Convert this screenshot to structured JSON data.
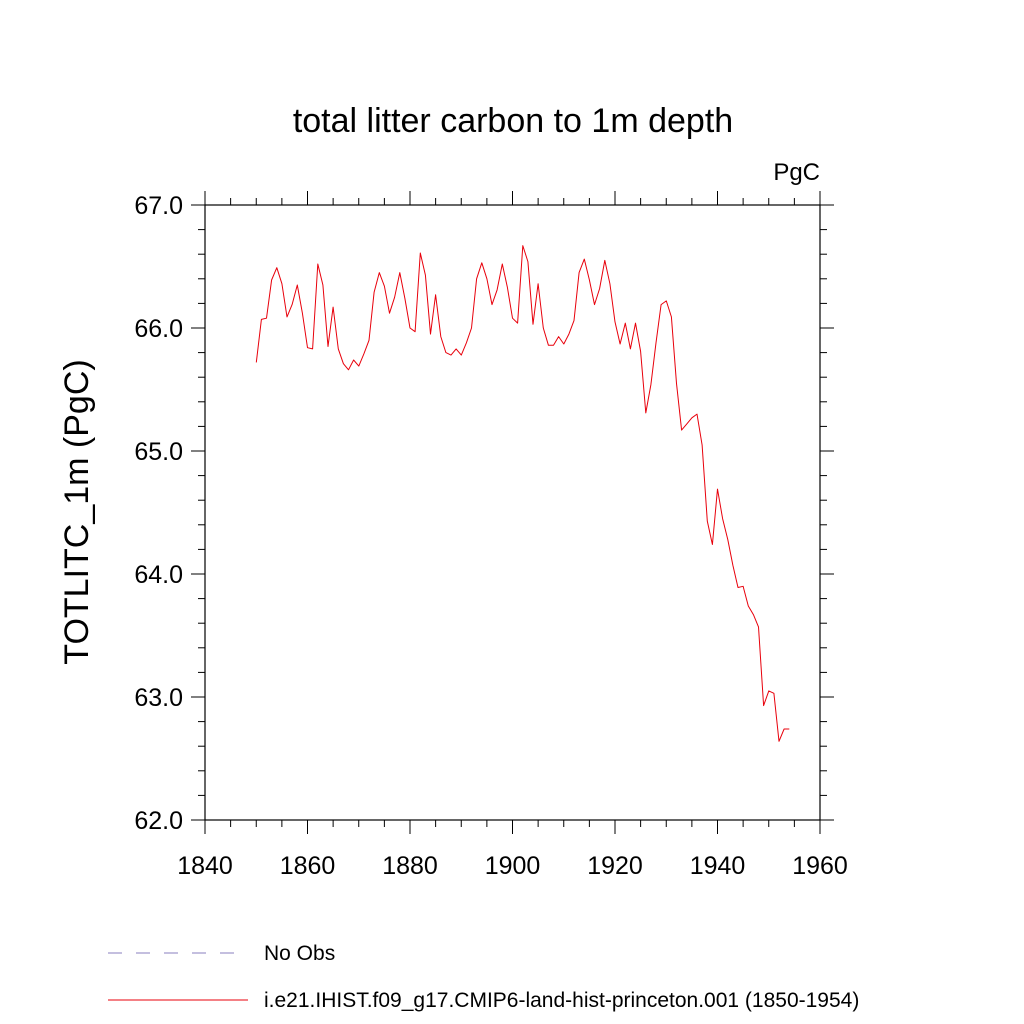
{
  "chart_data": {
    "type": "line",
    "title": "total litter carbon to 1m depth",
    "units": "PgC",
    "xlabel": "",
    "ylabel": "TOTLITC_1m  (PgC)",
    "xlim": [
      1840,
      1960
    ],
    "ylim": [
      62.0,
      67.0
    ],
    "x_ticks": [
      "1840",
      "1860",
      "1880",
      "1900",
      "1920",
      "1940",
      "1960"
    ],
    "y_ticks": [
      "62.0",
      "63.0",
      "64.0",
      "65.0",
      "66.0",
      "67.0"
    ],
    "grid": false,
    "legend_position": "bottom",
    "series": [
      {
        "name": "i.e21.IHIST.f09_g17.CMIP6-land-hist-princeton.001 (1850-1954)",
        "color": "#e8000b",
        "style": "solid",
        "x": [
          1850,
          1851,
          1852,
          1853,
          1854,
          1855,
          1856,
          1857,
          1858,
          1859,
          1860,
          1861,
          1862,
          1863,
          1864,
          1865,
          1866,
          1867,
          1868,
          1869,
          1870,
          1871,
          1872,
          1873,
          1874,
          1875,
          1876,
          1877,
          1878,
          1879,
          1880,
          1881,
          1882,
          1883,
          1884,
          1885,
          1886,
          1887,
          1888,
          1889,
          1890,
          1891,
          1892,
          1893,
          1894,
          1895,
          1896,
          1897,
          1898,
          1899,
          1900,
          1901,
          1902,
          1903,
          1904,
          1905,
          1906,
          1907,
          1908,
          1909,
          1910,
          1911,
          1912,
          1913,
          1914,
          1915,
          1916,
          1917,
          1918,
          1919,
          1920,
          1921,
          1922,
          1923,
          1924,
          1925,
          1926,
          1927,
          1928,
          1929,
          1930,
          1931,
          1932,
          1933,
          1934,
          1935,
          1936,
          1937,
          1938,
          1939,
          1940,
          1941,
          1942,
          1943,
          1944,
          1945,
          1946,
          1947,
          1948,
          1949,
          1950,
          1951,
          1952,
          1953,
          1954
        ],
        "y": [
          65.72,
          66.07,
          66.08,
          66.39,
          66.49,
          66.36,
          66.09,
          66.19,
          66.35,
          66.12,
          65.84,
          65.83,
          66.52,
          66.35,
          65.85,
          66.17,
          65.83,
          65.71,
          65.66,
          65.74,
          65.69,
          65.79,
          65.9,
          66.29,
          66.45,
          66.34,
          66.12,
          66.25,
          66.45,
          66.24,
          66.0,
          65.97,
          66.61,
          66.43,
          65.95,
          66.27,
          65.93,
          65.8,
          65.78,
          65.83,
          65.78,
          65.88,
          66.0,
          66.4,
          66.53,
          66.4,
          66.19,
          66.31,
          66.52,
          66.33,
          66.08,
          66.04,
          66.67,
          66.54,
          66.03,
          66.36,
          66.0,
          65.86,
          65.86,
          65.93,
          65.87,
          65.95,
          66.06,
          66.45,
          66.56,
          66.39,
          66.19,
          66.32,
          66.55,
          66.36,
          66.05,
          65.87,
          66.04,
          65.83,
          66.04,
          65.81,
          65.31,
          65.54,
          65.88,
          66.19,
          66.22,
          66.09,
          65.55,
          65.17,
          65.22,
          65.27,
          65.3,
          65.05,
          64.43,
          64.24,
          64.69,
          64.45,
          64.28,
          64.07,
          63.89,
          63.9,
          63.74,
          63.67,
          63.57,
          62.93,
          63.05,
          63.03,
          62.64,
          62.74,
          62.74
        ]
      }
    ],
    "legend": [
      {
        "label": "No Obs",
        "color": "#8a7fbf",
        "style": "dashed"
      },
      {
        "label": "i.e21.IHIST.f09_g17.CMIP6-land-hist-princeton.001 (1850-1954)",
        "color": "#e8000b",
        "style": "solid"
      }
    ]
  }
}
